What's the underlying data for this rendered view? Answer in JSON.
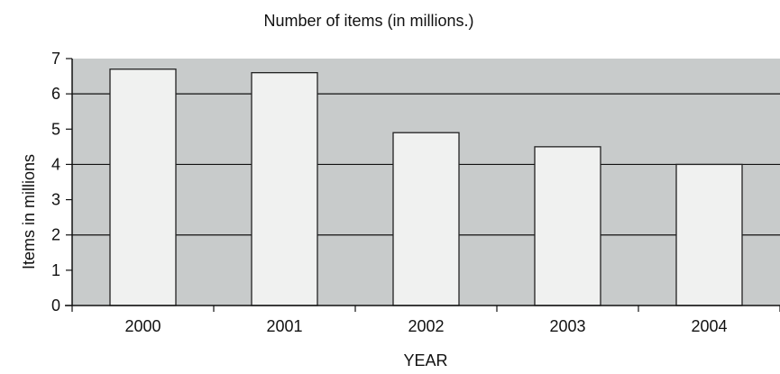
{
  "chart_data": {
    "type": "bar",
    "title": "Number of items (in millions.)",
    "xlabel": "YEAR",
    "ylabel": "Items in millions",
    "categories": [
      "2000",
      "2001",
      "2002",
      "2003",
      "2004"
    ],
    "values": [
      6.7,
      6.6,
      4.9,
      4.5,
      4.0
    ],
    "ylim": [
      0,
      7
    ],
    "yticks": [
      "0",
      "1",
      "2",
      "3",
      "4",
      "5",
      "6",
      "7"
    ],
    "grid": "horizontal at even values",
    "legend": "none",
    "colors": {
      "plot_background": "#c8cbcb",
      "bar_fill": "#f0f1f0",
      "bar_stroke": "#222222",
      "axis": "#111111",
      "text": "#111111"
    }
  }
}
